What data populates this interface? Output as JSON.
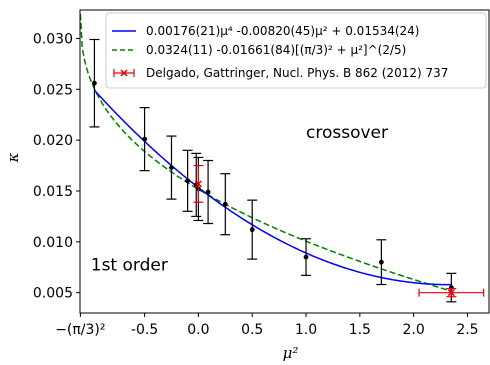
{
  "chart_data": {
    "type": "scatter",
    "xlabel": "μ²",
    "ylabel": "κ",
    "xlim": [
      -1.1,
      2.7
    ],
    "ylim": [
      0.003,
      0.0328
    ],
    "x_ticks": [
      {
        "value": -1.0966,
        "label": "−(π/3)²"
      },
      {
        "value": -0.5,
        "label": "-0.5"
      },
      {
        "value": 0.0,
        "label": "0.0"
      },
      {
        "value": 0.5,
        "label": "0.5"
      },
      {
        "value": 1.0,
        "label": "1.0"
      },
      {
        "value": 1.5,
        "label": "1.5"
      },
      {
        "value": 2.0,
        "label": "2.0"
      },
      {
        "value": 2.5,
        "label": "2.5"
      }
    ],
    "y_ticks": [
      {
        "value": 0.005,
        "label": "0.005"
      },
      {
        "value": 0.01,
        "label": "0.010"
      },
      {
        "value": 0.015,
        "label": "0.015"
      },
      {
        "value": 0.02,
        "label": "0.020"
      },
      {
        "value": 0.025,
        "label": "0.025"
      },
      {
        "value": 0.03,
        "label": "0.030"
      }
    ],
    "series": [
      {
        "name": "0.00176(21)μ⁴ -0.00820(45)μ² + 0.01534(24)",
        "kind": "fit-line",
        "color": "#0000ff",
        "style": "solid",
        "coefficients": {
          "a4": 0.00176,
          "a2": -0.0082,
          "a0": 0.01534
        },
        "x_range": [
          -0.966,
          2.35
        ]
      },
      {
        "name": "0.0324(11) -0.01661(84)[(π/3)² + μ²]^(2/5)",
        "kind": "fit-line",
        "color": "#008000",
        "style": "dashed",
        "coefficients": {
          "c": 0.0324,
          "b": 0.01661,
          "shift": 1.0966,
          "power": 0.4
        },
        "x_range": [
          -1.0966,
          2.35
        ]
      },
      {
        "name": "Delgado, Gattringer, Nucl. Phys. B 862 (2012) 737",
        "kind": "error-points",
        "color": "#e8000b",
        "points": [
          {
            "x": 0.0,
            "y": 0.0157,
            "yerr": 0.0018,
            "xerr": 0.0
          },
          {
            "x": 2.35,
            "y": 0.005,
            "yerr": 0.0004,
            "xerr": 0.3
          }
        ]
      },
      {
        "kind": "error-points",
        "color": "#000000",
        "points": [
          {
            "x": -0.966,
            "y": 0.0256,
            "yerr": 0.0043
          },
          {
            "x": -0.5,
            "y": 0.0201,
            "yerr": 0.0031
          },
          {
            "x": -0.25,
            "y": 0.0173,
            "yerr": 0.0031
          },
          {
            "x": -0.1,
            "y": 0.016,
            "yerr": 0.003
          },
          {
            "x": -0.02,
            "y": 0.0156,
            "yerr": 0.0031
          },
          {
            "x": 0.0,
            "y": 0.0152,
            "yerr": 0.0031
          },
          {
            "x": 0.09,
            "y": 0.0149,
            "yerr": 0.0031
          },
          {
            "x": 0.25,
            "y": 0.0137,
            "yerr": 0.003
          },
          {
            "x": 0.5,
            "y": 0.0112,
            "yerr": 0.0029
          },
          {
            "x": 1.0,
            "y": 0.0085,
            "yerr": 0.0018
          },
          {
            "x": 1.7,
            "y": 0.008,
            "yerr": 0.0022
          },
          {
            "x": 2.35,
            "y": 0.0055,
            "yerr": 0.0014
          }
        ]
      }
    ],
    "annotations": [
      {
        "text": "crossover",
        "x": 1.0,
        "y": 0.0202
      },
      {
        "text": "1st order",
        "x": -1.0,
        "y": 0.0072
      }
    ],
    "legend_position": "top-right",
    "grid": false
  }
}
